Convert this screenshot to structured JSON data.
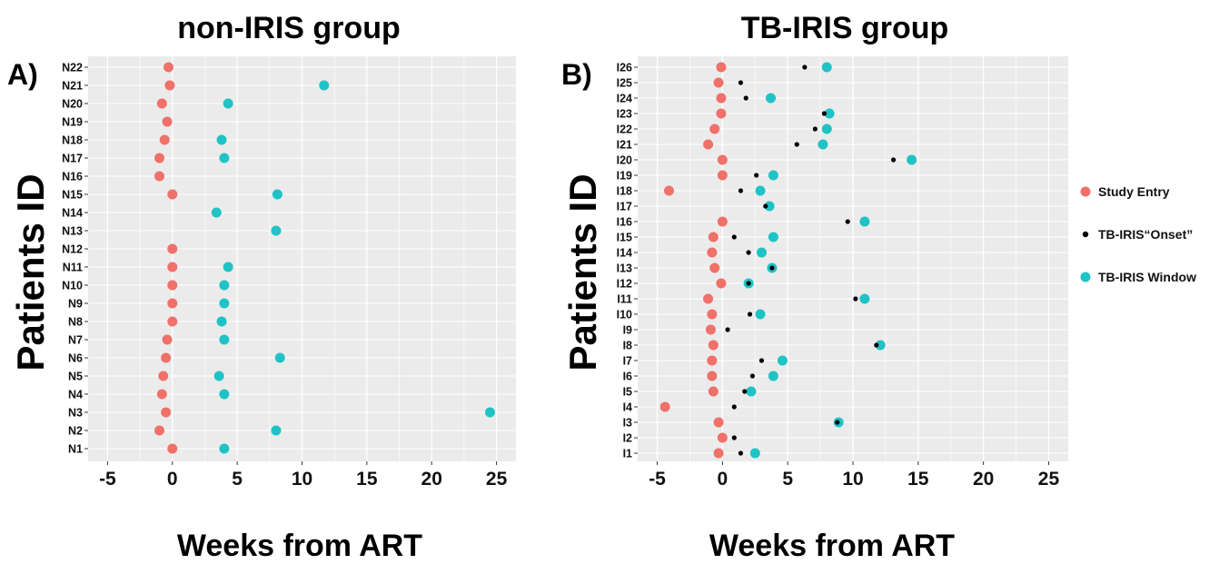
{
  "legend": {
    "items": [
      {
        "label": "Study Entry",
        "color": "#f0706a"
      },
      {
        "label": "TB-IRIS“Onset”",
        "color": "#000000"
      },
      {
        "label": "TB-IRIS Window",
        "color": "#1fc3c5"
      }
    ]
  },
  "chart_data": [
    {
      "type": "scatter",
      "panel_label": "A)",
      "title": "non-IRIS group",
      "xlabel": "Weeks from ART",
      "ylabel": "Patients ID",
      "xlim": [
        -6.5,
        26.5
      ],
      "xticks": [
        -5,
        0,
        5,
        10,
        15,
        20,
        25
      ],
      "grid": true,
      "categories": [
        "N1",
        "N2",
        "N3",
        "N4",
        "N5",
        "N6",
        "N7",
        "N8",
        "N9",
        "N10",
        "N11",
        "N12",
        "N13",
        "N14",
        "N15",
        "N16",
        "N17",
        "N18",
        "N19",
        "N20",
        "N21",
        "N22"
      ],
      "series": [
        {
          "name": "Study Entry",
          "color": "#f0706a",
          "points": [
            [
              "N1",
              0
            ],
            [
              "N2",
              -1
            ],
            [
              "N3",
              -0.5
            ],
            [
              "N4",
              -0.8
            ],
            [
              "N5",
              -0.7
            ],
            [
              "N6",
              -0.5
            ],
            [
              "N7",
              -0.4
            ],
            [
              "N8",
              0
            ],
            [
              "N9",
              0
            ],
            [
              "N10",
              0
            ],
            [
              "N11",
              0
            ],
            [
              "N12",
              0
            ],
            [
              "N13",
              null
            ],
            [
              "N14",
              null
            ],
            [
              "N15",
              0
            ],
            [
              "N16",
              -1
            ],
            [
              "N17",
              -1
            ],
            [
              "N18",
              -0.6
            ],
            [
              "N19",
              -0.4
            ],
            [
              "N20",
              -0.8
            ],
            [
              "N21",
              -0.2
            ],
            [
              "N22",
              -0.3
            ]
          ]
        },
        {
          "name": "TB-IRIS Window",
          "color": "#1fc3c5",
          "points": [
            [
              "N1",
              4
            ],
            [
              "N2",
              8
            ],
            [
              "N3",
              24.5
            ],
            [
              "N4",
              4
            ],
            [
              "N5",
              3.6
            ],
            [
              "N6",
              8.3
            ],
            [
              "N7",
              4
            ],
            [
              "N8",
              3.8
            ],
            [
              "N9",
              4
            ],
            [
              "N10",
              4
            ],
            [
              "N11",
              4.3
            ],
            [
              "N12",
              null
            ],
            [
              "N13",
              8
            ],
            [
              "N14",
              3.4
            ],
            [
              "N15",
              8.1
            ],
            [
              "N16",
              null
            ],
            [
              "N17",
              4
            ],
            [
              "N18",
              3.8
            ],
            [
              "N19",
              null
            ],
            [
              "N20",
              4.3
            ],
            [
              "N21",
              11.7
            ],
            [
              "N22",
              null
            ]
          ]
        }
      ]
    },
    {
      "type": "scatter",
      "panel_label": "B)",
      "title": "TB-IRIS group",
      "xlabel": "Weeks from ART",
      "ylabel": "Patients ID",
      "xlim": [
        -6.5,
        26.5
      ],
      "xticks": [
        -5,
        0,
        5,
        10,
        15,
        20,
        25
      ],
      "grid": true,
      "categories": [
        "I1",
        "I2",
        "I3",
        "I4",
        "I5",
        "I6",
        "I7",
        "I8",
        "I9",
        "I10",
        "I11",
        "I12",
        "I13",
        "I14",
        "I15",
        "I16",
        "I17",
        "I18",
        "I19",
        "I20",
        "I21",
        "I22",
        "I23",
        "I24",
        "I25",
        "I26"
      ],
      "series": [
        {
          "name": "Study Entry",
          "color": "#f0706a",
          "points": [
            [
              "I1",
              -0.3
            ],
            [
              "I2",
              0
            ],
            [
              "I3",
              -0.3
            ],
            [
              "I4",
              -4.4
            ],
            [
              "I5",
              -0.7
            ],
            [
              "I6",
              -0.8
            ],
            [
              "I7",
              -0.8
            ],
            [
              "I8",
              -0.7
            ],
            [
              "I9",
              -0.9
            ],
            [
              "I10",
              -0.8
            ],
            [
              "I11",
              -1.1
            ],
            [
              "I12",
              -0.1
            ],
            [
              "I13",
              -0.6
            ],
            [
              "I14",
              -0.8
            ],
            [
              "I15",
              -0.7
            ],
            [
              "I16",
              0
            ],
            [
              "I17",
              null
            ],
            [
              "I18",
              -4.1
            ],
            [
              "I19",
              0
            ],
            [
              "I20",
              0
            ],
            [
              "I21",
              -1.1
            ],
            [
              "I22",
              -0.6
            ],
            [
              "I23",
              -0.1
            ],
            [
              "I24",
              -0.1
            ],
            [
              "I25",
              -0.3
            ],
            [
              "I26",
              -0.1
            ]
          ]
        },
        {
          "name": "TB-IRIS“Onset”",
          "color": "#000000",
          "points": [
            [
              "I1",
              1.4
            ],
            [
              "I2",
              0.9
            ],
            [
              "I3",
              8.8
            ],
            [
              "I4",
              0.9
            ],
            [
              "I5",
              1.7
            ],
            [
              "I6",
              2.3
            ],
            [
              "I7",
              3
            ],
            [
              "I8",
              11.8
            ],
            [
              "I9",
              0.4
            ],
            [
              "I10",
              2.1
            ],
            [
              "I11",
              10.2
            ],
            [
              "I12",
              2
            ],
            [
              "I13",
              3.8
            ],
            [
              "I14",
              2
            ],
            [
              "I15",
              0.9
            ],
            [
              "I16",
              9.6
            ],
            [
              "I17",
              3.3
            ],
            [
              "I18",
              1.4
            ],
            [
              "I19",
              2.6
            ],
            [
              "I20",
              13.1
            ],
            [
              "I21",
              5.7
            ],
            [
              "I22",
              7.1
            ],
            [
              "I23",
              7.8
            ],
            [
              "I24",
              1.8
            ],
            [
              "I25",
              1.4
            ],
            [
              "I26",
              6.3
            ]
          ]
        },
        {
          "name": "TB-IRIS Window",
          "color": "#1fc3c5",
          "points": [
            [
              "I1",
              2.5
            ],
            [
              "I2",
              null
            ],
            [
              "I3",
              8.9
            ],
            [
              "I4",
              null
            ],
            [
              "I5",
              2.2
            ],
            [
              "I6",
              3.9
            ],
            [
              "I7",
              4.6
            ],
            [
              "I8",
              12.1
            ],
            [
              "I9",
              null
            ],
            [
              "I10",
              2.9
            ],
            [
              "I11",
              10.9
            ],
            [
              "I12",
              2
            ],
            [
              "I13",
              3.8
            ],
            [
              "I14",
              3
            ],
            [
              "I15",
              3.9
            ],
            [
              "I16",
              10.9
            ],
            [
              "I17",
              3.6
            ],
            [
              "I18",
              2.9
            ],
            [
              "I19",
              3.9
            ],
            [
              "I20",
              14.5
            ],
            [
              "I21",
              7.7
            ],
            [
              "I22",
              8
            ],
            [
              "I23",
              8.2
            ],
            [
              "I24",
              3.7
            ],
            [
              "I25",
              null
            ],
            [
              "I26",
              8
            ]
          ]
        }
      ]
    }
  ]
}
